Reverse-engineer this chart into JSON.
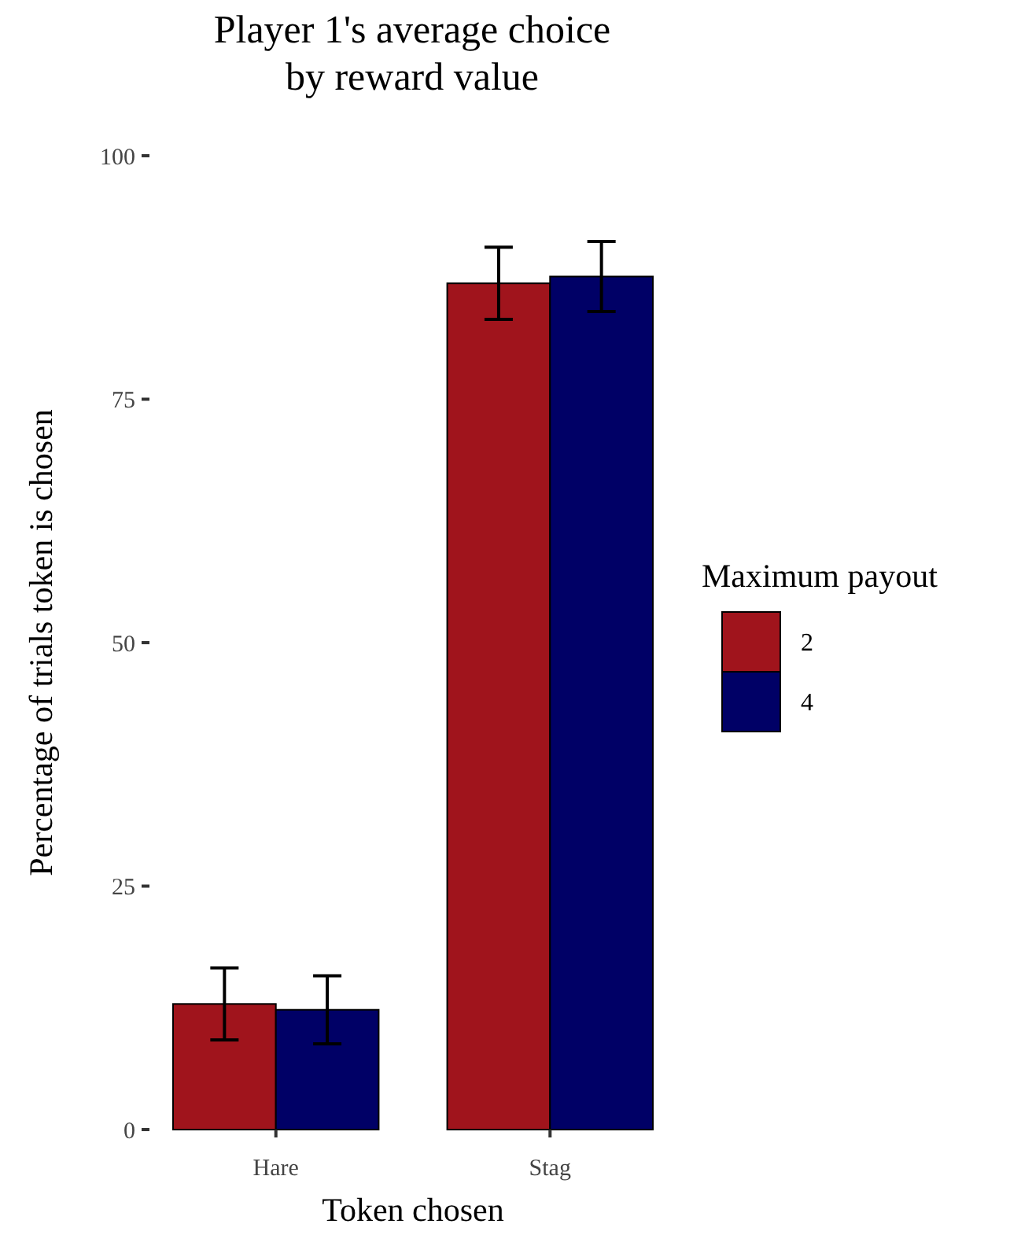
{
  "chart_data": {
    "type": "bar",
    "title": "Player 1's average choice\nby reward value",
    "xlabel": "Token chosen",
    "ylabel": "Percentage of trials token is chosen",
    "legend_title": "Maximum payout",
    "categories": [
      "Hare",
      "Stag"
    ],
    "series": [
      {
        "name": "2",
        "color": "#a0141c",
        "values": [
          12.9,
          86.9
        ],
        "errors": [
          3.7,
          3.7
        ]
      },
      {
        "name": "4",
        "color": "#000066",
        "values": [
          12.3,
          87.6
        ],
        "errors": [
          3.5,
          3.6
        ]
      }
    ],
    "ylim": [
      0,
      100
    ],
    "yticks": [
      0,
      25,
      50,
      75,
      100
    ],
    "grid": false,
    "legend": "right"
  }
}
